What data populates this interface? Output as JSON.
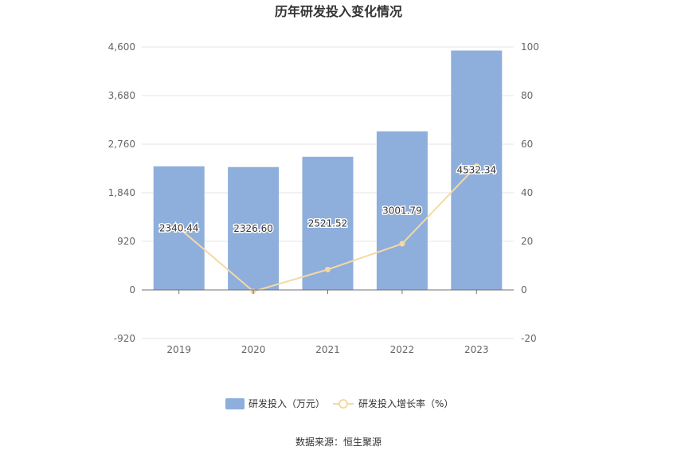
{
  "chart_data": {
    "type": "bar",
    "title": "历年研发投入变化情况",
    "categories": [
      "2019",
      "2020",
      "2021",
      "2022",
      "2023"
    ],
    "series": [
      {
        "name": "研发投入（万元）",
        "type": "bar",
        "axis": "left",
        "color": "#8eaedc",
        "values": [
          2340.44,
          2326.6,
          2521.52,
          3001.79,
          4532.34
        ],
        "labels": [
          "2340.44",
          "2326.60",
          "2521.52",
          "3001.79",
          "4532.34"
        ]
      },
      {
        "name": "研发投入增长率（%）",
        "type": "line",
        "axis": "right",
        "color": "#f5d9a3",
        "values": [
          25.5,
          -0.6,
          8.4,
          19.0,
          51.0
        ]
      }
    ],
    "y_left": {
      "min": -920,
      "max": 4600,
      "ticks": [
        -920,
        0,
        920,
        1840,
        2760,
        3680,
        4600
      ],
      "tick_labels": [
        "-920",
        "0",
        "920",
        "1,840",
        "2,760",
        "3,680",
        "4,600"
      ]
    },
    "y_right": {
      "min": -20,
      "max": 100,
      "ticks": [
        -20,
        0,
        20,
        40,
        60,
        80,
        100
      ],
      "tick_labels": [
        "-20",
        "0",
        "20",
        "40",
        "60",
        "80",
        "100"
      ]
    },
    "grid": true,
    "legend": "bottom-center"
  },
  "source": "数据来源：恒生聚源"
}
